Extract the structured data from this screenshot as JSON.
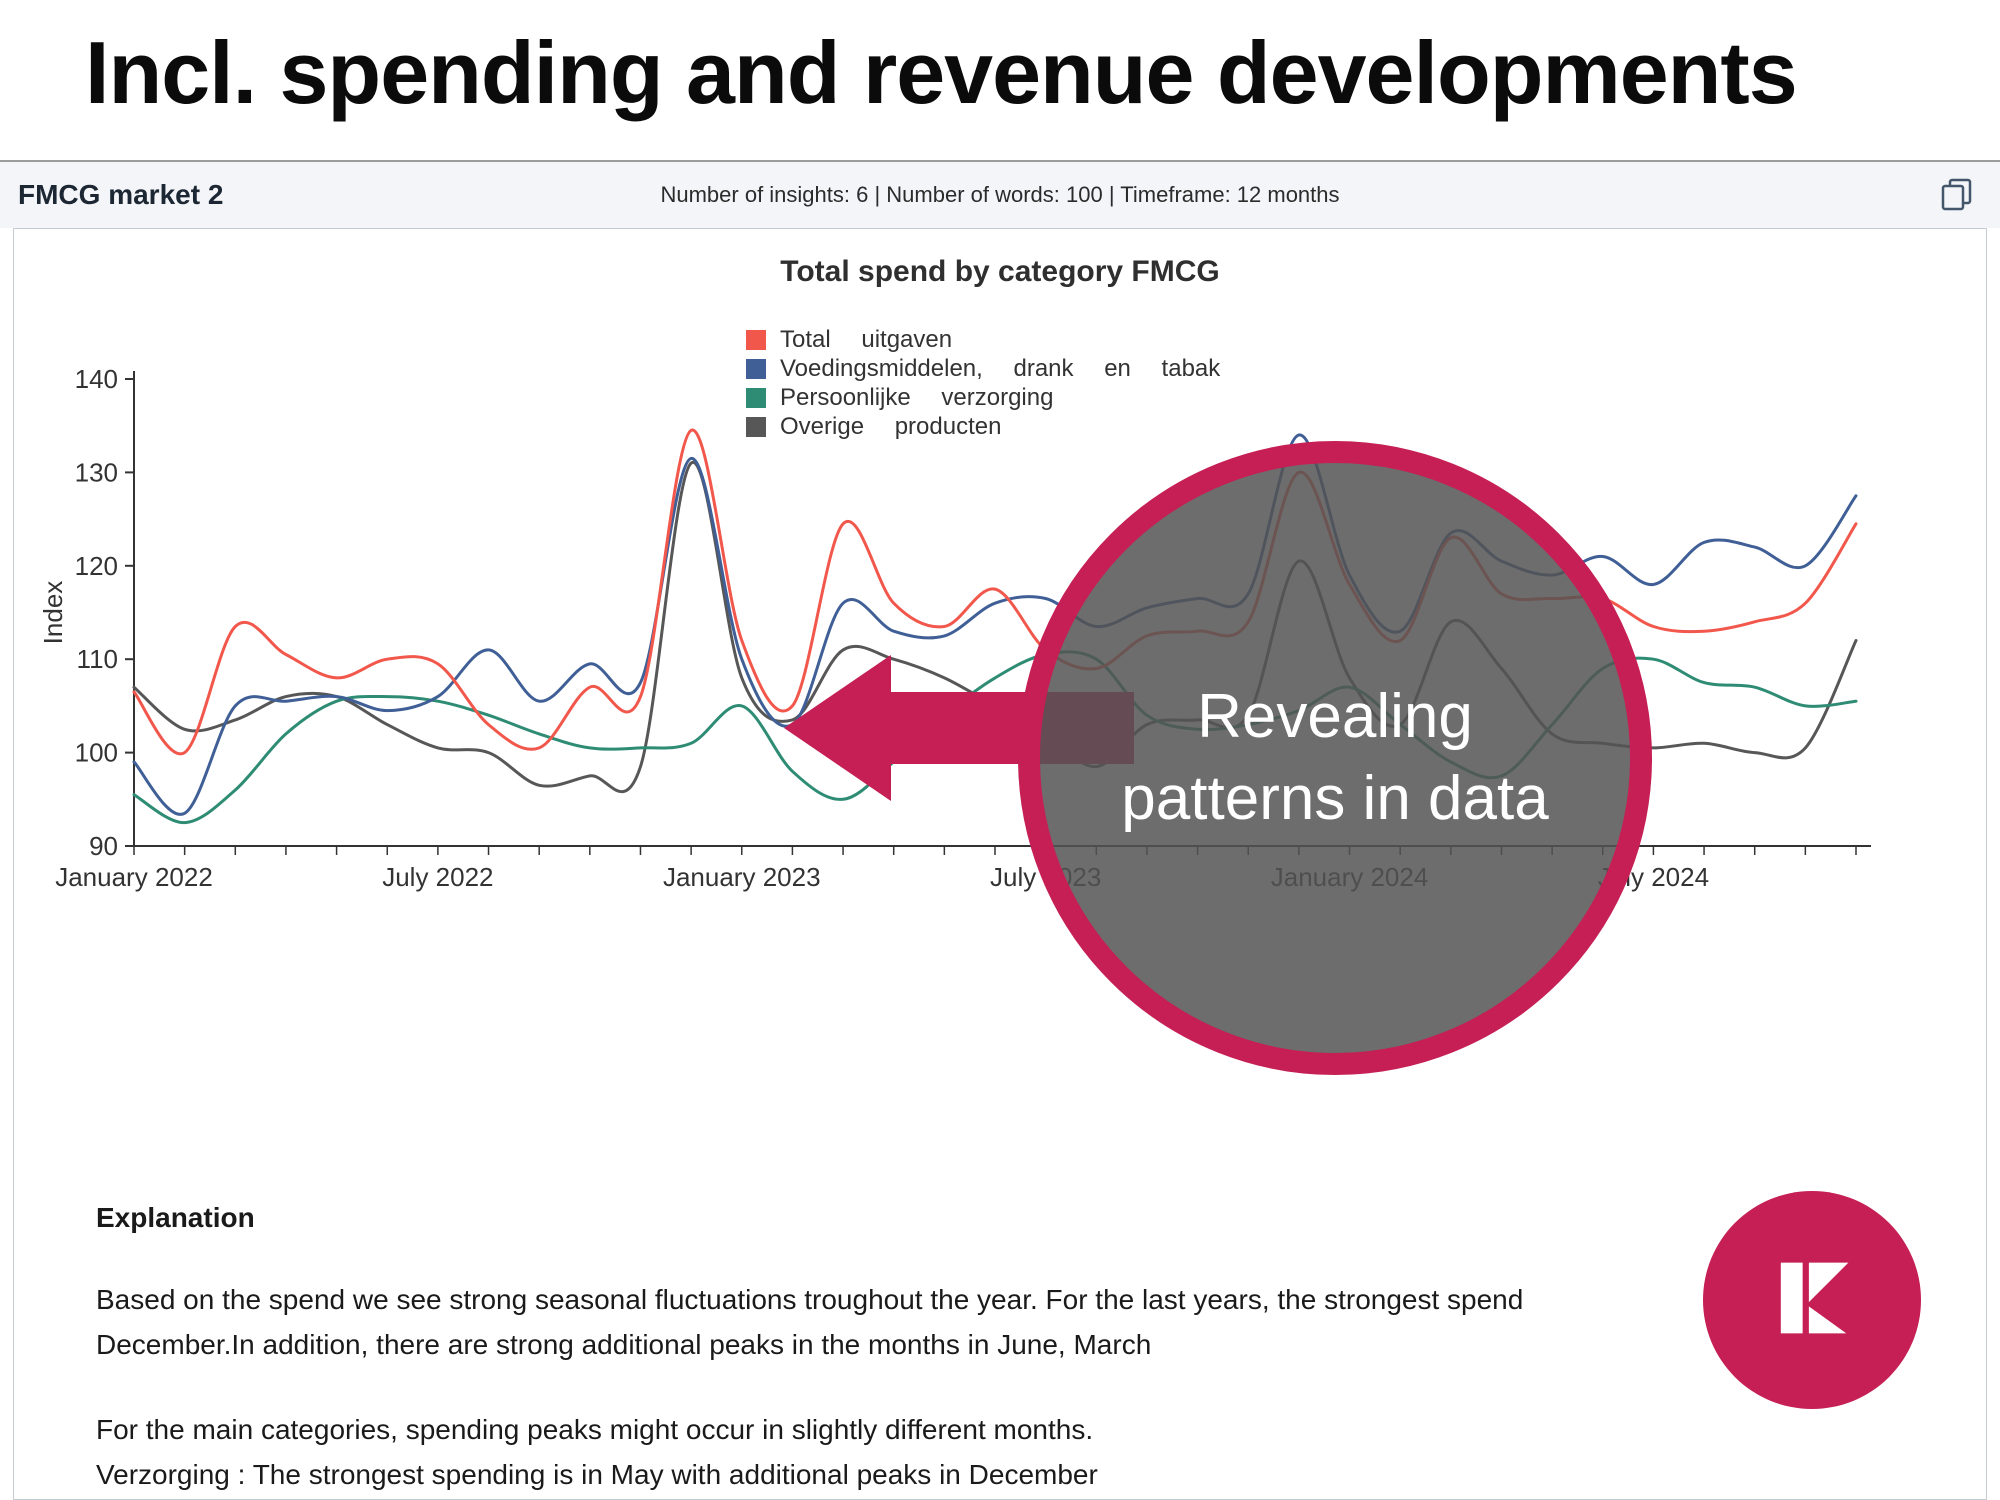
{
  "page": {
    "title": "Incl. spending and revenue developments"
  },
  "panel": {
    "title": "FMCG market 2",
    "meta": "Number of insights: 6 | Number of words: 100 | Timeframe: 12 months",
    "copy_icon": "copy-icon"
  },
  "overlay": {
    "callout_text": "Revealing patterns in data",
    "accent_color": "#c51f55",
    "inner_color": "rgba(84,84,84,0.85)"
  },
  "explanation": {
    "heading": "Explanation",
    "para1": "Based on the spend we see strong seasonal fluctuations troughout the year. For the last years, the strongest spend\nDecember.In addition, there are strong additional peaks in the months in June, March",
    "para2": "For the main categories, spending peaks might occur in slightly different months.\nVerzorging : The strongest spending is in May with additional peaks in December"
  },
  "chart_data": {
    "type": "line",
    "title": "Total spend by category FMCG",
    "xlabel": "",
    "ylabel": "Index",
    "ylim": [
      90,
      140
    ],
    "yticks": [
      90,
      100,
      110,
      120,
      130,
      140
    ],
    "grid": false,
    "legend_position": "top",
    "months": 35,
    "x_start": "January 2022",
    "x_end": "November 2024",
    "x_major_labels": [
      "January 2022",
      "July 2022",
      "January 2023",
      "July 2023",
      "January 2024",
      "July 2024"
    ],
    "x_major_positions": [
      0,
      6,
      12,
      18,
      24,
      30
    ],
    "series": [
      {
        "name": "Total uitgaven",
        "color": "#f2574c",
        "values": [
          106.5,
          100,
          113.5,
          110.5,
          108,
          110,
          109.5,
          103,
          100.5,
          107,
          106,
          134.5,
          112,
          105,
          124.5,
          116,
          113.5,
          117.5,
          111,
          109,
          112.5,
          113,
          114,
          130,
          118,
          112,
          123,
          117,
          116.5,
          116.5,
          113.5,
          113,
          114,
          116,
          124.5
        ]
      },
      {
        "name": "Voedingsmiddelen, drank en tabak",
        "color": "#3f5f96",
        "values": [
          99,
          93.5,
          105,
          105.5,
          106,
          104.5,
          106,
          111,
          105.5,
          109.5,
          107.5,
          131.5,
          110,
          103,
          116,
          113,
          112.5,
          116,
          116.5,
          113.5,
          115.5,
          116.5,
          117,
          134,
          119,
          113,
          123.5,
          120.5,
          119,
          121,
          118,
          122.5,
          122,
          120,
          127.5
        ]
      },
      {
        "name": "Persoonlijke verzorging",
        "color": "#2f8c74",
        "values": [
          95.5,
          92.5,
          96,
          102,
          105.5,
          106,
          105.5,
          104,
          102,
          100.5,
          100.5,
          101,
          105,
          98,
          95,
          99,
          104,
          108,
          110.5,
          110,
          104,
          102.5,
          103,
          104.5,
          107,
          103,
          99,
          97.5,
          103,
          109,
          110,
          107.5,
          107,
          105,
          105.5
        ]
      },
      {
        "name": "Overige producten",
        "color": "#575757",
        "values": [
          107,
          102.5,
          103.5,
          106,
          106,
          103,
          100.5,
          100,
          96.5,
          97.5,
          98.5,
          131,
          108,
          103.5,
          111,
          110,
          108,
          105,
          102,
          98.5,
          103,
          103.5,
          104,
          120.5,
          108,
          103,
          114,
          109,
          102,
          101,
          100.5,
          101,
          100,
          100.5,
          112
        ]
      }
    ]
  }
}
